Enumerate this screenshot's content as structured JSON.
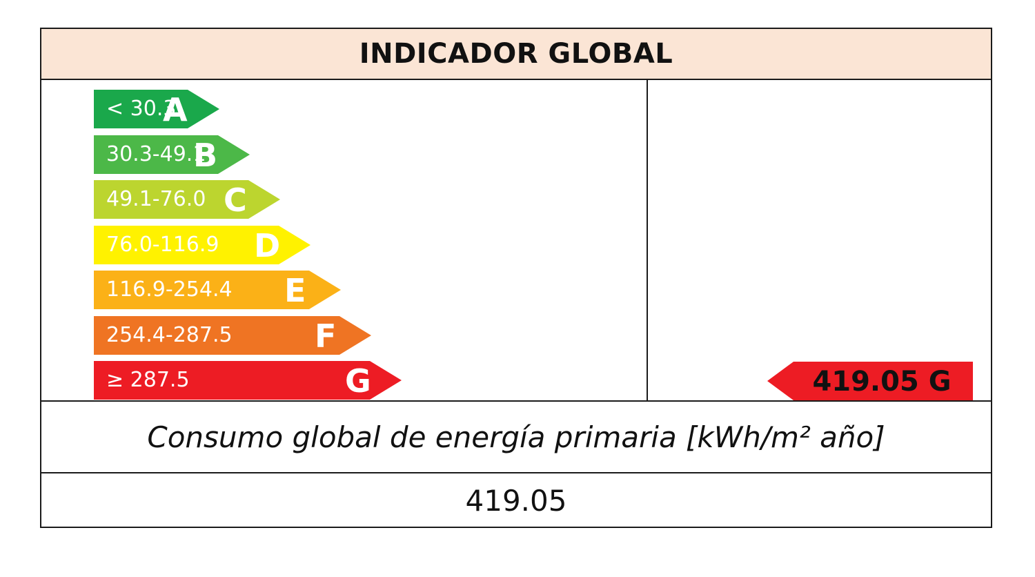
{
  "title": "INDICADOR GLOBAL",
  "scale": [
    {
      "range": "< 30.3",
      "letter": "A",
      "color": "#1aa84b"
    },
    {
      "range": "30.3-49.1",
      "letter": "B",
      "color": "#4cb848"
    },
    {
      "range": "49.1-76.0",
      "letter": "C",
      "color": "#bcd52f"
    },
    {
      "range": "76.0-116.9",
      "letter": "D",
      "color": "#fff200"
    },
    {
      "range": "116.9-254.4",
      "letter": "E",
      "color": "#fbb117"
    },
    {
      "range": "254.4-287.5",
      "letter": "F",
      "color": "#ef7423"
    },
    {
      "range": "≥ 287.5",
      "letter": "G",
      "color": "#ed1c24"
    }
  ],
  "rating": {
    "label": "419.05 G",
    "value": 419.05,
    "letter": "G",
    "color": "#ed1c24"
  },
  "caption": "Consumo global de energía primaria [kWh/m² año]",
  "consumption_value": "419.05"
}
